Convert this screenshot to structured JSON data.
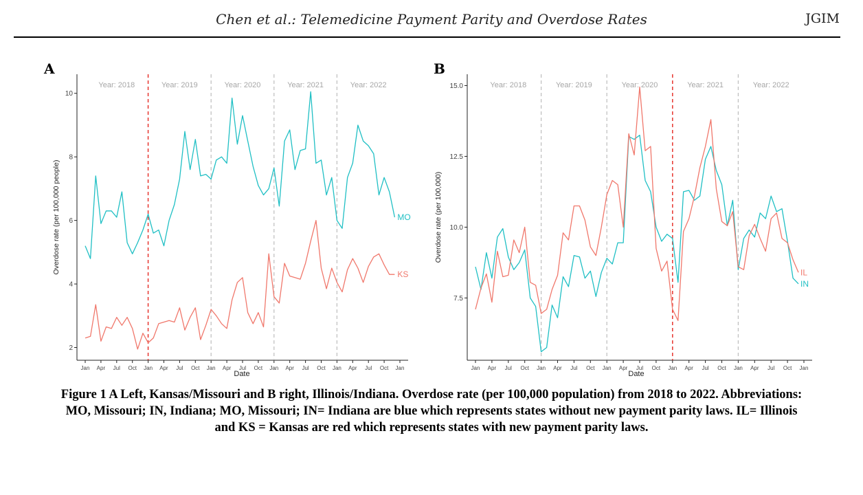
{
  "header": {
    "title": "Chen et al.: Telemedicine Payment Parity and Overdose Rates",
    "journal": "JGIM"
  },
  "panels": [
    {
      "letter": "A"
    },
    {
      "letter": "B"
    }
  ],
  "caption": {
    "line1": "Figure 1  A Left, Kansas/Missouri and B right, Illinois/Indiana. Overdose rate (per 100,000 population) from 2018 to 2022. Abbreviations:",
    "line2": "MO, Missouri; IN, Indiana; MO, Missouri; IN= Indiana are blue which represents states without new payment parity laws. IL= Illinois",
    "line3": "and KS = Kansas are red which represents states with new payment parity laws."
  },
  "colors": {
    "blue": "#1fbfc4",
    "red": "#f0776b",
    "axis": "#222222",
    "muted": "#a6a6a6",
    "policy": "#e8403a",
    "yeardiv": "#bdbdbd"
  },
  "chart_data": [
    {
      "type": "line",
      "panel": "A",
      "xlabel": "Date",
      "ylabel": "Overdose rate (per 100,000 people)",
      "ylim": [
        1.6,
        10.6
      ],
      "yticks": [
        2,
        4,
        6,
        8,
        10
      ],
      "ytick_labels": [
        "2",
        "4",
        "6",
        "8",
        "10"
      ],
      "xticks_months": [
        0,
        3,
        6,
        9,
        12,
        15,
        18,
        21,
        24,
        27,
        30,
        33,
        36,
        39,
        42,
        45,
        48,
        51,
        54,
        57,
        60
      ],
      "xtick_labels": [
        "Jan",
        "Apr",
        "Jul",
        "Oct",
        "Jan",
        "Apr",
        "Jul",
        "Oct",
        "Jan",
        "Apr",
        "Jul",
        "Oct",
        "Jan",
        "Apr",
        "Jul",
        "Oct",
        "Jan",
        "Apr",
        "Jul",
        "Oct",
        "Jan"
      ],
      "year_labels": [
        "Year: 2018",
        "Year: 2019",
        "Year: 2020",
        "Year: 2021",
        "Year: 2022"
      ],
      "policy_month": 12,
      "series": [
        {
          "name": "MO",
          "label": "MO",
          "color": "blue",
          "values": [
            5.2,
            4.8,
            7.4,
            5.9,
            6.3,
            6.3,
            6.1,
            6.9,
            5.3,
            4.95,
            5.3,
            5.7,
            6.2,
            5.6,
            5.7,
            5.2,
            6.0,
            6.5,
            7.3,
            8.8,
            7.6,
            8.55,
            7.4,
            7.45,
            7.3,
            7.9,
            8.0,
            7.8,
            9.85,
            8.4,
            9.3,
            8.5,
            7.7,
            7.1,
            6.8,
            7.0,
            7.65,
            6.45,
            8.5,
            8.85,
            7.6,
            8.2,
            8.25,
            10.05,
            7.8,
            7.9,
            6.8,
            7.35,
            6.0,
            5.75,
            7.35,
            7.8,
            9.0,
            8.5,
            8.35,
            8.1,
            6.8,
            7.35,
            6.9,
            6.1
          ]
        },
        {
          "name": "KS",
          "label": "KS",
          "color": "red",
          "values": [
            2.3,
            2.35,
            3.35,
            2.2,
            2.65,
            2.6,
            2.95,
            2.7,
            2.95,
            2.6,
            1.95,
            2.45,
            2.15,
            2.3,
            2.75,
            2.8,
            2.85,
            2.8,
            3.25,
            2.55,
            2.95,
            3.25,
            2.25,
            2.7,
            3.2,
            3.0,
            2.75,
            2.6,
            3.5,
            4.05,
            4.2,
            3.1,
            2.75,
            3.1,
            2.65,
            4.95,
            3.6,
            3.4,
            4.65,
            4.25,
            4.2,
            4.15,
            4.65,
            5.35,
            6.0,
            4.5,
            3.85,
            4.5,
            4.05,
            3.75,
            4.45,
            4.8,
            4.5,
            4.05,
            4.55,
            4.85,
            4.95,
            4.6,
            4.3,
            4.3
          ]
        }
      ]
    },
    {
      "type": "line",
      "panel": "B",
      "xlabel": "Date",
      "ylabel": "Overdose rate (per 100,000)",
      "ylim": [
        5.3,
        15.4
      ],
      "yticks": [
        7.5,
        10.0,
        12.5,
        15.0
      ],
      "ytick_labels": [
        "7.5",
        "10.0",
        "12.5",
        "15.0"
      ],
      "xticks_months": [
        0,
        3,
        6,
        9,
        12,
        15,
        18,
        21,
        24,
        27,
        30,
        33,
        36,
        39,
        42,
        45,
        48,
        51,
        54,
        57,
        60
      ],
      "xtick_labels": [
        "Jan",
        "Apr",
        "Jul",
        "Oct",
        "Jan",
        "Apr",
        "Jul",
        "Oct",
        "Jan",
        "Apr",
        "Jul",
        "Oct",
        "Jan",
        "Apr",
        "Jul",
        "Oct",
        "Jan",
        "Apr",
        "Jul",
        "Oct",
        "Jan"
      ],
      "year_labels": [
        "Year: 2018",
        "Year: 2019",
        "Year: 2020",
        "Year: 2021",
        "Year: 2022"
      ],
      "policy_month": 36,
      "series": [
        {
          "name": "IN",
          "label": "IN",
          "color": "blue",
          "values": [
            8.6,
            7.8,
            9.1,
            8.2,
            9.65,
            9.95,
            8.95,
            8.5,
            8.75,
            9.2,
            7.5,
            7.2,
            5.6,
            5.75,
            7.25,
            6.8,
            8.25,
            7.9,
            9.0,
            8.95,
            8.2,
            8.45,
            7.55,
            8.4,
            8.9,
            8.7,
            9.45,
            9.45,
            13.2,
            13.1,
            13.25,
            11.65,
            11.25,
            10.0,
            9.5,
            9.75,
            9.6,
            8.05,
            11.25,
            11.3,
            10.95,
            11.1,
            12.4,
            12.85,
            12.0,
            11.5,
            10.05,
            10.95,
            8.5,
            9.6,
            9.9,
            9.65,
            10.5,
            10.3,
            11.1,
            10.55,
            10.65,
            9.5,
            8.2,
            8.0
          ]
        },
        {
          "name": "IL",
          "label": "IL",
          "color": "red",
          "values": [
            7.1,
            7.85,
            8.35,
            7.35,
            9.15,
            8.25,
            8.3,
            9.55,
            9.1,
            10.0,
            8.05,
            7.95,
            6.95,
            7.1,
            7.8,
            8.3,
            9.8,
            9.55,
            10.75,
            10.75,
            10.25,
            9.3,
            9.0,
            10.0,
            11.15,
            11.65,
            11.5,
            10.0,
            13.3,
            12.55,
            14.95,
            12.7,
            12.85,
            9.25,
            8.45,
            8.8,
            7.1,
            6.7,
            9.85,
            10.3,
            11.1,
            12.1,
            12.85,
            13.8,
            11.35,
            10.2,
            10.05,
            10.55,
            8.6,
            8.5,
            9.7,
            10.1,
            9.6,
            9.15,
            10.3,
            10.5,
            9.6,
            9.45,
            8.85,
            8.4
          ]
        }
      ]
    }
  ]
}
